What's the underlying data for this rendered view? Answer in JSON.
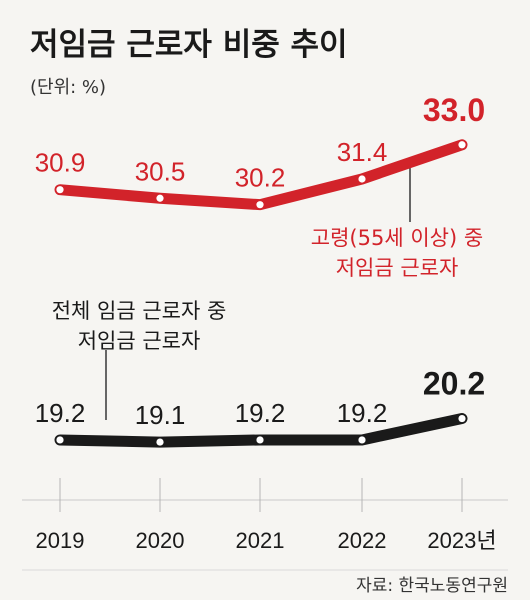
{
  "chart_data": {
    "type": "line",
    "title": "저임금 근로자 비중 추이",
    "unit_label": "(단위: %)",
    "categories": [
      "2019",
      "2020",
      "2021",
      "2022",
      "2023년"
    ],
    "ylim": [
      17,
      35
    ],
    "series": [
      {
        "name_lines": [
          "고령(55세 이상) 중",
          "저임금 근로자"
        ],
        "values": [
          30.9,
          30.5,
          30.2,
          31.4,
          33.0
        ],
        "value_labels": [
          "30.9",
          "30.5",
          "30.2",
          "31.4",
          "33.0"
        ],
        "color": "#d2232a"
      },
      {
        "name_lines": [
          "전체 임금 근로자 중",
          "저임금 근로자"
        ],
        "values": [
          19.2,
          19.1,
          19.2,
          19.2,
          20.2
        ],
        "value_labels": [
          "19.2",
          "19.1",
          "19.2",
          "19.2",
          "20.2"
        ],
        "color": "#1a1a1a"
      }
    ],
    "grid": false,
    "source": "자료: 한국노동연구원"
  }
}
